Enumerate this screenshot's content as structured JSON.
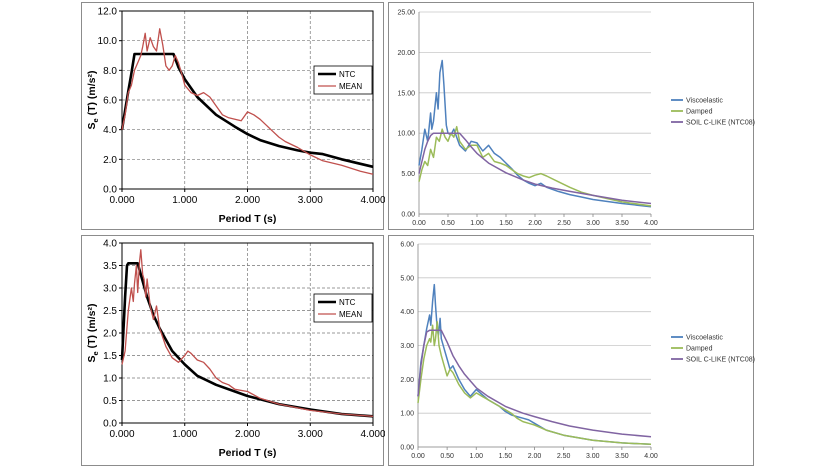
{
  "chart_data": [
    {
      "type": "line",
      "panel": "top-left",
      "xlabel": "Period T (s)",
      "ylabel": "Se (T) (m/s²)",
      "xlim": [
        0,
        4
      ],
      "ylim": [
        0,
        12
      ],
      "x_ticks": [
        "0.000",
        "1.000",
        "2.000",
        "3.000",
        "4.000"
      ],
      "y_ticks": [
        "0.0",
        "2.0",
        "4.0",
        "6.0",
        "8.0",
        "10.0",
        "12.0"
      ],
      "grid": "dashed",
      "legend": "right",
      "series": [
        {
          "name": "NTC",
          "color": "#000000",
          "width": 2.6,
          "x": [
            0,
            0.05,
            0.1,
            0.15,
            0.2,
            0.25,
            0.3,
            0.82,
            0.9,
            1.0,
            1.2,
            1.5,
            1.8,
            2.0,
            2.2,
            2.5,
            2.8,
            3.0,
            3.2,
            3.5,
            3.8,
            4.0
          ],
          "y": [
            4.0,
            5.3,
            6.6,
            7.8,
            9.1,
            9.1,
            9.1,
            9.1,
            8.2,
            7.4,
            6.2,
            5.0,
            4.2,
            3.7,
            3.3,
            2.9,
            2.6,
            2.45,
            2.35,
            2.0,
            1.7,
            1.5
          ]
        },
        {
          "name": "MEAN",
          "color": "#c0504d",
          "width": 1.3,
          "x": [
            0,
            0.05,
            0.1,
            0.15,
            0.2,
            0.25,
            0.3,
            0.33,
            0.37,
            0.4,
            0.45,
            0.5,
            0.55,
            0.6,
            0.65,
            0.7,
            0.75,
            0.8,
            0.85,
            0.9,
            0.95,
            1.0,
            1.1,
            1.2,
            1.3,
            1.4,
            1.5,
            1.6,
            1.7,
            1.8,
            1.9,
            2.0,
            2.1,
            2.2,
            2.3,
            2.4,
            2.5,
            2.6,
            2.8,
            3.0,
            3.2,
            3.5,
            3.8,
            4.0
          ],
          "y": [
            4.0,
            5.0,
            6.5,
            7.0,
            8.0,
            8.5,
            9.0,
            9.6,
            10.5,
            9.3,
            10.2,
            9.6,
            9.3,
            10.8,
            9.7,
            8.3,
            8.0,
            8.3,
            9.0,
            8.5,
            7.8,
            7.0,
            6.5,
            6.3,
            6.5,
            6.2,
            5.6,
            5.0,
            4.8,
            4.7,
            4.6,
            5.2,
            5.0,
            4.7,
            4.3,
            3.9,
            3.5,
            3.2,
            2.8,
            2.3,
            1.9,
            1.6,
            1.2,
            1.0
          ]
        }
      ]
    },
    {
      "type": "line",
      "panel": "top-right",
      "xlim": [
        0,
        4
      ],
      "ylim": [
        0,
        25
      ],
      "x_ticks": [
        "0.00",
        "0.50",
        "1.00",
        "1.50",
        "2.00",
        "2.50",
        "3.00",
        "3.50",
        "4.00"
      ],
      "y_ticks": [
        "0.00",
        "5.00",
        "10.00",
        "15.00",
        "20.00",
        "25.00"
      ],
      "grid": "horizontal",
      "legend": "right",
      "series": [
        {
          "name": "Viscoelastic",
          "color": "#4f81bd",
          "width": 1.5,
          "x": [
            0,
            0.05,
            0.1,
            0.15,
            0.2,
            0.22,
            0.25,
            0.3,
            0.33,
            0.36,
            0.4,
            0.43,
            0.47,
            0.5,
            0.55,
            0.6,
            0.65,
            0.7,
            0.8,
            0.9,
            1.0,
            1.1,
            1.2,
            1.3,
            1.4,
            1.5,
            1.6,
            1.7,
            1.8,
            1.9,
            2.0,
            2.1,
            2.2,
            2.4,
            2.6,
            2.8,
            3.0,
            3.5,
            4.0
          ],
          "y": [
            6.0,
            8.0,
            10.5,
            9.0,
            12.5,
            10.5,
            11.5,
            15.0,
            13.0,
            17.5,
            19.0,
            16.0,
            11.0,
            10.0,
            9.8,
            10.5,
            9.5,
            8.5,
            7.8,
            9.0,
            8.8,
            7.8,
            8.5,
            7.5,
            7.0,
            6.3,
            5.6,
            4.8,
            4.2,
            3.8,
            3.5,
            3.8,
            3.3,
            2.8,
            2.4,
            2.1,
            1.8,
            1.3,
            0.9
          ]
        },
        {
          "name": "Damped",
          "color": "#9bbb59",
          "width": 1.5,
          "x": [
            0,
            0.05,
            0.1,
            0.15,
            0.2,
            0.25,
            0.3,
            0.35,
            0.4,
            0.45,
            0.5,
            0.55,
            0.6,
            0.65,
            0.7,
            0.75,
            0.8,
            0.9,
            1.0,
            1.1,
            1.2,
            1.3,
            1.4,
            1.5,
            1.6,
            1.7,
            1.8,
            1.9,
            2.0,
            2.1,
            2.2,
            2.4,
            2.6,
            2.8,
            3.0,
            3.5,
            4.0
          ],
          "y": [
            4.0,
            5.5,
            6.5,
            6.0,
            8.0,
            7.0,
            9.5,
            9.0,
            10.5,
            9.5,
            9.0,
            10.0,
            9.5,
            10.8,
            9.0,
            8.5,
            8.0,
            8.5,
            8.5,
            7.0,
            7.5,
            6.5,
            6.3,
            6.0,
            5.5,
            5.0,
            4.7,
            4.5,
            4.8,
            5.0,
            4.7,
            4.0,
            3.3,
            2.7,
            2.3,
            1.5,
            1.0
          ]
        },
        {
          "name": "SOIL C-LIKE (NTC08)",
          "color": "#8064a2",
          "width": 1.5,
          "x": [
            0,
            0.05,
            0.1,
            0.15,
            0.2,
            0.25,
            0.3,
            0.7,
            0.8,
            0.9,
            1.0,
            1.2,
            1.5,
            1.8,
            2.0,
            2.3,
            2.6,
            3.0,
            3.5,
            4.0
          ],
          "y": [
            5.0,
            6.5,
            8.0,
            9.0,
            9.7,
            10.0,
            10.0,
            10.0,
            9.2,
            8.3,
            7.5,
            6.3,
            5.1,
            4.2,
            3.7,
            3.2,
            2.8,
            2.3,
            1.7,
            1.3
          ]
        }
      ]
    },
    {
      "type": "line",
      "panel": "bottom-left",
      "xlabel": "Period T (s)",
      "ylabel": "Se (T) (m/s²)",
      "xlim": [
        0,
        4
      ],
      "ylim": [
        0,
        4
      ],
      "x_ticks": [
        "0.000",
        "1.000",
        "2.000",
        "3.000",
        "4.000"
      ],
      "y_ticks": [
        "0.0",
        "0.5",
        "1.0",
        "1.5",
        "2.0",
        "2.5",
        "3.0",
        "3.5",
        "4.0"
      ],
      "grid": "dashed",
      "legend": "right",
      "series": [
        {
          "name": "NTC",
          "color": "#000000",
          "width": 2.6,
          "x": [
            0,
            0.02,
            0.05,
            0.08,
            0.1,
            0.15,
            0.2,
            0.25,
            0.3,
            0.4,
            0.5,
            0.6,
            0.7,
            0.8,
            1.0,
            1.2,
            1.5,
            1.8,
            2.0,
            2.5,
            3.0,
            3.5,
            4.0
          ],
          "y": [
            1.4,
            2.0,
            2.8,
            3.5,
            3.55,
            3.55,
            3.55,
            3.55,
            3.3,
            2.8,
            2.4,
            2.1,
            1.85,
            1.6,
            1.3,
            1.05,
            0.85,
            0.7,
            0.6,
            0.42,
            0.3,
            0.2,
            0.15
          ]
        },
        {
          "name": "MEAN",
          "color": "#c0504d",
          "width": 1.3,
          "x": [
            0,
            0.05,
            0.1,
            0.15,
            0.18,
            0.2,
            0.23,
            0.25,
            0.28,
            0.3,
            0.33,
            0.35,
            0.38,
            0.4,
            0.45,
            0.5,
            0.55,
            0.6,
            0.65,
            0.7,
            0.8,
            0.9,
            1.0,
            1.05,
            1.1,
            1.2,
            1.3,
            1.4,
            1.5,
            1.6,
            1.7,
            1.8,
            2.0,
            2.2,
            2.5,
            3.0,
            3.5,
            4.0
          ],
          "y": [
            1.3,
            1.6,
            2.5,
            3.0,
            2.7,
            3.1,
            3.5,
            2.9,
            3.6,
            3.85,
            3.3,
            3.2,
            2.8,
            3.2,
            2.6,
            2.3,
            2.6,
            2.1,
            1.9,
            1.7,
            1.45,
            1.35,
            1.5,
            1.6,
            1.55,
            1.4,
            1.35,
            1.2,
            1.0,
            0.9,
            0.85,
            0.75,
            0.7,
            0.55,
            0.42,
            0.28,
            0.2,
            0.15
          ]
        }
      ]
    },
    {
      "type": "line",
      "panel": "bottom-right",
      "xlim": [
        0,
        4
      ],
      "ylim": [
        0,
        6
      ],
      "x_ticks": [
        "0.00",
        "0.50",
        "1.00",
        "1.50",
        "2.00",
        "2.50",
        "3.00",
        "3.50",
        "4.00"
      ],
      "y_ticks": [
        "0.00",
        "1.00",
        "2.00",
        "3.00",
        "4.00",
        "5.00",
        "6.00"
      ],
      "grid": "horizontal",
      "legend": "right",
      "series": [
        {
          "name": "Viscoelastic",
          "color": "#4f81bd",
          "width": 1.5,
          "x": [
            0,
            0.05,
            0.1,
            0.15,
            0.2,
            0.22,
            0.25,
            0.28,
            0.3,
            0.33,
            0.35,
            0.38,
            0.4,
            0.45,
            0.5,
            0.55,
            0.6,
            0.7,
            0.8,
            0.9,
            1.0,
            1.1,
            1.2,
            1.3,
            1.4,
            1.5,
            1.6,
            1.7,
            1.8,
            1.9,
            2.0,
            2.2,
            2.5,
            3.0,
            3.5,
            4.0
          ],
          "y": [
            1.5,
            2.5,
            3.0,
            3.5,
            3.9,
            3.6,
            4.3,
            4.8,
            4.2,
            3.5,
            3.3,
            3.8,
            3.2,
            2.9,
            2.6,
            2.3,
            2.4,
            2.0,
            1.7,
            1.5,
            1.7,
            1.55,
            1.4,
            1.3,
            1.2,
            1.05,
            0.95,
            0.9,
            0.85,
            0.8,
            0.7,
            0.5,
            0.35,
            0.2,
            0.12,
            0.08
          ]
        },
        {
          "name": "Damped",
          "color": "#9bbb59",
          "width": 1.5,
          "x": [
            0,
            0.05,
            0.1,
            0.15,
            0.2,
            0.22,
            0.25,
            0.28,
            0.3,
            0.33,
            0.36,
            0.4,
            0.45,
            0.5,
            0.55,
            0.6,
            0.7,
            0.8,
            0.9,
            1.0,
            1.1,
            1.2,
            1.3,
            1.4,
            1.5,
            1.6,
            1.7,
            1.8,
            1.9,
            2.0,
            2.2,
            2.5,
            3.0,
            3.5,
            4.0
          ],
          "y": [
            1.3,
            2.0,
            2.6,
            3.0,
            3.2,
            3.1,
            3.6,
            3.0,
            3.2,
            3.7,
            3.0,
            2.7,
            2.4,
            2.1,
            2.3,
            2.2,
            1.85,
            1.6,
            1.45,
            1.6,
            1.5,
            1.4,
            1.3,
            1.2,
            1.1,
            1.0,
            0.85,
            0.75,
            0.7,
            0.65,
            0.5,
            0.35,
            0.2,
            0.12,
            0.08
          ]
        },
        {
          "name": "SOIL C-LIKE (NTC08)",
          "color": "#8064a2",
          "width": 1.5,
          "x": [
            0,
            0.05,
            0.1,
            0.15,
            0.2,
            0.4,
            0.5,
            0.6,
            0.7,
            0.8,
            0.9,
            1.0,
            1.2,
            1.5,
            1.8,
            2.0,
            2.3,
            2.6,
            3.0,
            3.5,
            4.0
          ],
          "y": [
            1.5,
            2.4,
            3.0,
            3.4,
            3.45,
            3.45,
            3.1,
            2.7,
            2.4,
            2.15,
            1.95,
            1.75,
            1.5,
            1.2,
            1.0,
            0.9,
            0.75,
            0.62,
            0.5,
            0.38,
            0.3
          ]
        }
      ]
    }
  ]
}
